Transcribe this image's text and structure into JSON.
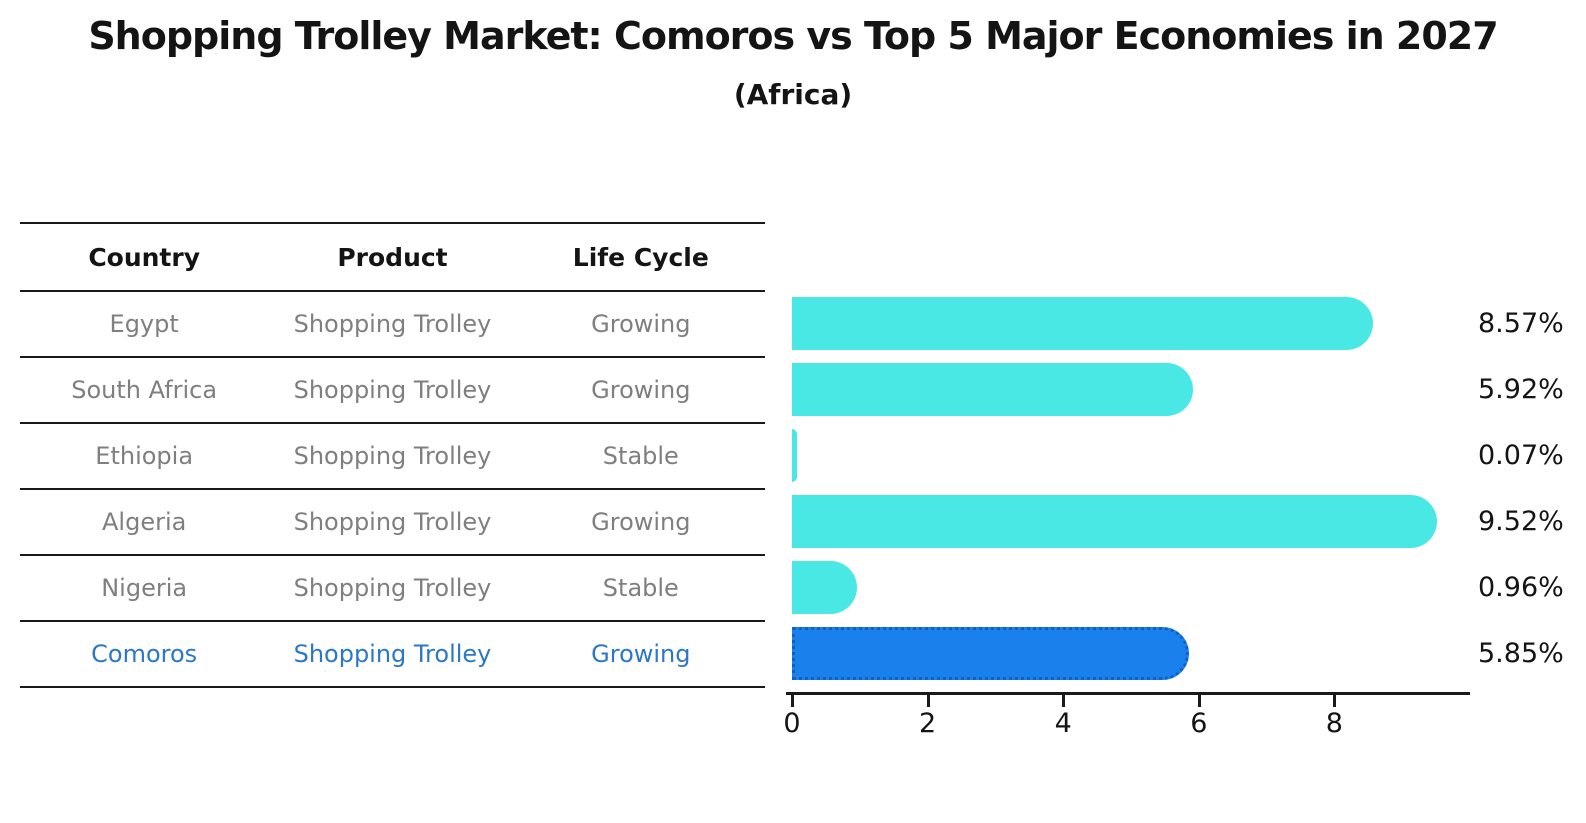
{
  "title": "Shopping Trolley Market: Comoros vs Top 5 Major Economies in 2027",
  "subtitle": "(Africa)",
  "colors": {
    "bar_default": "#4AE8E4",
    "bar_highlight": "#1A80EB",
    "bar_highlight_border": "#1160C6",
    "highlight_text": "#2B78C8",
    "row_text": "#7f7f7f",
    "heading_text": "#141414"
  },
  "table": {
    "headers": [
      "Country",
      "Product",
      "Life Cycle"
    ],
    "rows": [
      {
        "country": "Egypt",
        "product": "Shopping Trolley",
        "life_cycle": "Growing",
        "highlight": false
      },
      {
        "country": "South Africa",
        "product": "Shopping Trolley",
        "life_cycle": "Growing",
        "highlight": false
      },
      {
        "country": "Ethiopia",
        "product": "Shopping Trolley",
        "life_cycle": "Stable",
        "highlight": false
      },
      {
        "country": "Algeria",
        "product": "Shopping Trolley",
        "life_cycle": "Growing",
        "highlight": false
      },
      {
        "country": "Nigeria",
        "product": "Shopping Trolley",
        "life_cycle": "Stable",
        "highlight": false
      },
      {
        "country": "Comoros",
        "product": "Shopping Trolley",
        "life_cycle": "Growing",
        "highlight": true
      }
    ]
  },
  "chart_data": {
    "type": "bar",
    "orientation": "horizontal",
    "title": "Shopping Trolley Market: Comoros vs Top 5 Major Economies in 2027 (Africa)",
    "categories": [
      "Egypt",
      "South Africa",
      "Ethiopia",
      "Algeria",
      "Nigeria",
      "Comoros"
    ],
    "values": [
      8.57,
      5.92,
      0.07,
      9.52,
      0.96,
      5.85
    ],
    "value_labels": [
      "8.57%",
      "5.92%",
      "0.07%",
      "9.52%",
      "0.96%",
      "5.85%"
    ],
    "highlight_index": 5,
    "xlabel": "",
    "ylabel": "",
    "xlim": [
      0,
      10
    ],
    "xticks": [
      0,
      2,
      4,
      6,
      8
    ],
    "grid": false,
    "legend": false
  }
}
